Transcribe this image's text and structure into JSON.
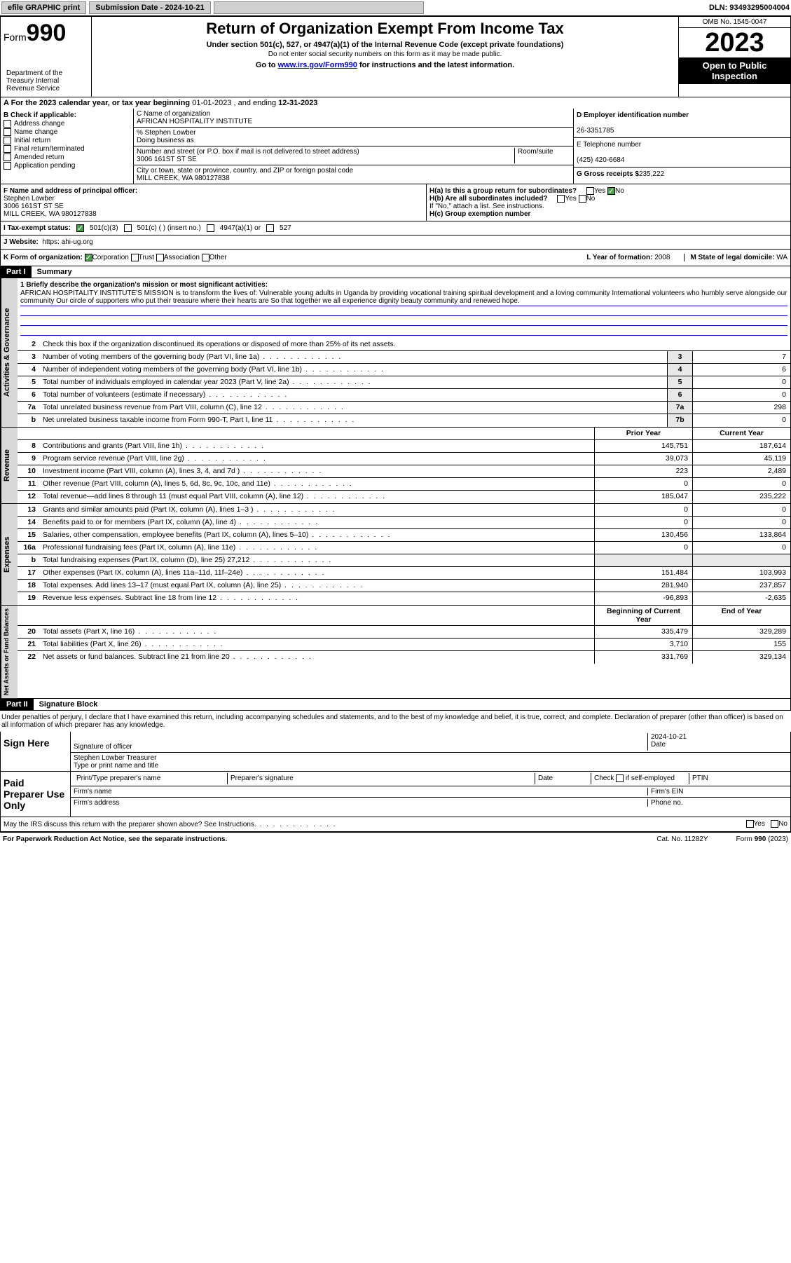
{
  "topbar": {
    "efile": "efile GRAPHIC print",
    "submission_label": "Submission Date - 2024-10-21",
    "dln": "DLN: 93493295004004"
  },
  "header": {
    "form_label": "Form",
    "form_number": "990",
    "title": "Return of Organization Exempt From Income Tax",
    "subtitle": "Under section 501(c), 527, or 4947(a)(1) of the Internal Revenue Code (except private foundations)",
    "ssn_warning": "Do not enter social security numbers on this form as it may be made public.",
    "goto_prefix": "Go to ",
    "goto_link": "www.irs.gov/Form990",
    "goto_suffix": " for instructions and the latest information.",
    "omb": "OMB No. 1545-0047",
    "year": "2023",
    "open_public": "Open to Public Inspection",
    "dept": "Department of the Treasury Internal Revenue Service"
  },
  "period": {
    "label_a": "A For the 2023 calendar year, or tax year beginning ",
    "begin": "01-01-2023",
    "mid": " , and ending ",
    "end": "12-31-2023"
  },
  "section_b": {
    "header": "B Check if applicable:",
    "items": [
      "Address change",
      "Name change",
      "Initial return",
      "Final return/terminated",
      "Amended return",
      "Application pending"
    ]
  },
  "section_c": {
    "name_label": "C Name of organization",
    "name": "AFRICAN HOSPITALITY INSTITUTE",
    "care_of": "% Stephen Lowber",
    "dba_label": "Doing business as",
    "street_label": "Number and street (or P.O. box if mail is not delivered to street address)",
    "room_label": "Room/suite",
    "street": "3006 161ST ST SE",
    "city_label": "City or town, state or province, country, and ZIP or foreign postal code",
    "city": "MILL CREEK, WA  980127838"
  },
  "section_d": {
    "ein_label": "D Employer identification number",
    "ein": "26-3351785",
    "phone_label": "E Telephone number",
    "phone": "(425) 420-6684",
    "gross_label": "G Gross receipts $",
    "gross": "235,222"
  },
  "section_f": {
    "label": "F Name and address of principal officer:",
    "name": "Stephen Lowber",
    "street": "3006 161ST ST SE",
    "city": "MILL CREEK, WA  980127838"
  },
  "section_h": {
    "ha_label": "H(a)  Is this a group return for subordinates?",
    "hb_label": "H(b)  Are all subordinates included?",
    "hb_note": "If \"No,\" attach a list. See instructions.",
    "hc_label": "H(c)  Group exemption number ",
    "yes": "Yes",
    "no": "No"
  },
  "row_i": {
    "label": "I  Tax-exempt status:",
    "opt1": "501(c)(3)",
    "opt2": "501(c) (  ) (insert no.)",
    "opt3": "4947(a)(1) or",
    "opt4": "527"
  },
  "row_j": {
    "label": "J  Website: ",
    "value": "https: ahi-ug.org"
  },
  "row_k": {
    "label": "K Form of organization:",
    "corp": "Corporation",
    "trust": "Trust",
    "assoc": "Association",
    "other": "Other",
    "l_label": "L Year of formation: ",
    "l_value": "2008",
    "m_label": "M State of legal domicile: ",
    "m_value": "WA"
  },
  "parts": {
    "part1": "Part I",
    "summary": "Summary",
    "part2": "Part II",
    "sigblock": "Signature Block"
  },
  "mission": {
    "label": "1  Briefly describe the organization's mission or most significant activities:",
    "text": "AFRICAN HOSPITALITY INSTITUTE'S MISSION is to transform the lives of: Vulnerable young adults in Uganda by providing vocational training spiritual development and a loving community International volunteers who humbly serve alongside our community Our circle of supporters who put their treasure where their hearts are So that together we all experience dignity beauty community and renewed hope."
  },
  "governance": {
    "side": "Activities & Governance",
    "line2": "Check this box      if the organization discontinued its operations or disposed of more than 25% of its net assets.",
    "rows": [
      {
        "n": "3",
        "t": "Number of voting members of the governing body (Part VI, line 1a)",
        "box": "3",
        "v": "7"
      },
      {
        "n": "4",
        "t": "Number of independent voting members of the governing body (Part VI, line 1b)",
        "box": "4",
        "v": "6"
      },
      {
        "n": "5",
        "t": "Total number of individuals employed in calendar year 2023 (Part V, line 2a)",
        "box": "5",
        "v": "0"
      },
      {
        "n": "6",
        "t": "Total number of volunteers (estimate if necessary)",
        "box": "6",
        "v": "0"
      },
      {
        "n": "7a",
        "t": "Total unrelated business revenue from Part VIII, column (C), line 12",
        "box": "7a",
        "v": "298"
      },
      {
        "n": "b",
        "t": "Net unrelated business taxable income from Form 990-T, Part I, line 11",
        "box": "7b",
        "v": "0"
      }
    ]
  },
  "revenue": {
    "side": "Revenue",
    "header_prior": "Prior Year",
    "header_current": "Current Year",
    "rows": [
      {
        "n": "8",
        "t": "Contributions and grants (Part VIII, line 1h)",
        "p": "145,751",
        "c": "187,614"
      },
      {
        "n": "9",
        "t": "Program service revenue (Part VIII, line 2g)",
        "p": "39,073",
        "c": "45,119"
      },
      {
        "n": "10",
        "t": "Investment income (Part VIII, column (A), lines 3, 4, and 7d )",
        "p": "223",
        "c": "2,489"
      },
      {
        "n": "11",
        "t": "Other revenue (Part VIII, column (A), lines 5, 6d, 8c, 9c, 10c, and 11e)",
        "p": "0",
        "c": "0"
      },
      {
        "n": "12",
        "t": "Total revenue—add lines 8 through 11 (must equal Part VIII, column (A), line 12)",
        "p": "185,047",
        "c": "235,222"
      }
    ]
  },
  "expenses": {
    "side": "Expenses",
    "rows": [
      {
        "n": "13",
        "t": "Grants and similar amounts paid (Part IX, column (A), lines 1–3 )",
        "p": "0",
        "c": "0"
      },
      {
        "n": "14",
        "t": "Benefits paid to or for members (Part IX, column (A), line 4)",
        "p": "0",
        "c": "0"
      },
      {
        "n": "15",
        "t": "Salaries, other compensation, employee benefits (Part IX, column (A), lines 5–10)",
        "p": "130,456",
        "c": "133,864"
      },
      {
        "n": "16a",
        "t": "Professional fundraising fees (Part IX, column (A), line 11e)",
        "p": "0",
        "c": "0"
      },
      {
        "n": "b",
        "t": "Total fundraising expenses (Part IX, column (D), line 25) 27,212",
        "p": "",
        "c": ""
      },
      {
        "n": "17",
        "t": "Other expenses (Part IX, column (A), lines 11a–11d, 11f–24e)",
        "p": "151,484",
        "c": "103,993"
      },
      {
        "n": "18",
        "t": "Total expenses. Add lines 13–17 (must equal Part IX, column (A), line 25)",
        "p": "281,940",
        "c": "237,857"
      },
      {
        "n": "19",
        "t": "Revenue less expenses. Subtract line 18 from line 12",
        "p": "-96,893",
        "c": "-2,635"
      }
    ]
  },
  "netassets": {
    "side": "Net Assets or Fund Balances",
    "header_begin": "Beginning of Current Year",
    "header_end": "End of Year",
    "rows": [
      {
        "n": "20",
        "t": "Total assets (Part X, line 16)",
        "p": "335,479",
        "c": "329,289"
      },
      {
        "n": "21",
        "t": "Total liabilities (Part X, line 26)",
        "p": "3,710",
        "c": "155"
      },
      {
        "n": "22",
        "t": "Net assets or fund balances. Subtract line 21 from line 20",
        "p": "331,769",
        "c": "329,134"
      }
    ]
  },
  "perjury": "Under penalties of perjury, I declare that I have examined this return, including accompanying schedules and statements, and to the best of my knowledge and belief, it is true, correct, and complete. Declaration of preparer (other than officer) is based on all information of which preparer has any knowledge.",
  "sign": {
    "label": "Sign Here",
    "sig_label": "Signature of officer",
    "date_label": "Date",
    "date": "2024-10-21",
    "name": "Stephen Lowber  Treasurer",
    "name_label": "Type or print name and title"
  },
  "paid": {
    "label": "Paid Preparer Use Only",
    "h1": "Print/Type preparer's name",
    "h2": "Preparer's signature",
    "h3": "Date",
    "h4_a": "Check",
    "h4_b": "if self-employed",
    "h5": "PTIN",
    "firm_name": "Firm's name  ",
    "firm_ein": "Firm's EIN  ",
    "firm_addr": "Firm's address  ",
    "phone": "Phone no."
  },
  "discuss": {
    "text": "May the IRS discuss this return with the preparer shown above? See Instructions.",
    "yes": "Yes",
    "no": "No"
  },
  "footer": {
    "left": "For Paperwork Reduction Act Notice, see the separate instructions.",
    "mid": "Cat. No. 11282Y",
    "right": "Form 990 (2023)"
  }
}
